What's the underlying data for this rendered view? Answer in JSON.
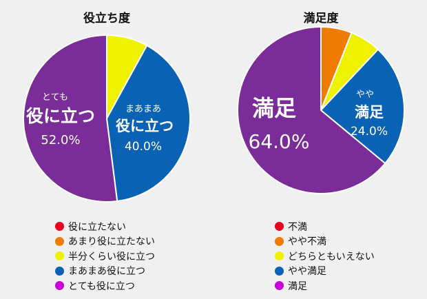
{
  "colors": {
    "red": "#e8001c",
    "orange": "#ef7b00",
    "yellow": "#eef200",
    "blue": "#0a62b4",
    "purple": "#7a2c99",
    "legend_purple": "#c800d8"
  },
  "chart_data": [
    {
      "type": "pie",
      "title": "役立ち度",
      "categories": [
        "役に立たない",
        "あまり役に立たない",
        "半分くらい役に立つ",
        "まあまあ役に立つ",
        "とても役に立つ"
      ],
      "values": [
        0.0,
        0.0,
        8.0,
        40.0,
        52.0
      ],
      "unit": "%",
      "legend_position": "bottom",
      "slice_labels": [
        {
          "lines": [],
          "percent": ""
        },
        {
          "lines": [],
          "percent": ""
        },
        {
          "lines": [],
          "percent": ""
        },
        {
          "lines": [
            "まあまあ",
            "役に立つ"
          ],
          "percent": "40.0%"
        },
        {
          "lines": [
            "とても",
            "役に立つ"
          ],
          "percent": "52.0%"
        }
      ]
    },
    {
      "type": "pie",
      "title": "満足度",
      "categories": [
        "不満",
        "やや不満",
        "どちらともいえない",
        "やや満足",
        "満足"
      ],
      "values": [
        0.0,
        6.0,
        6.0,
        24.0,
        64.0
      ],
      "unit": "%",
      "legend_position": "bottom",
      "slice_labels": [
        {
          "lines": [],
          "percent": ""
        },
        {
          "lines": [],
          "percent": ""
        },
        {
          "lines": [],
          "percent": ""
        },
        {
          "lines": [
            "やや",
            "満足"
          ],
          "percent": "24.0%"
        },
        {
          "lines": [
            "満足"
          ],
          "percent": "64.0%"
        }
      ]
    }
  ]
}
